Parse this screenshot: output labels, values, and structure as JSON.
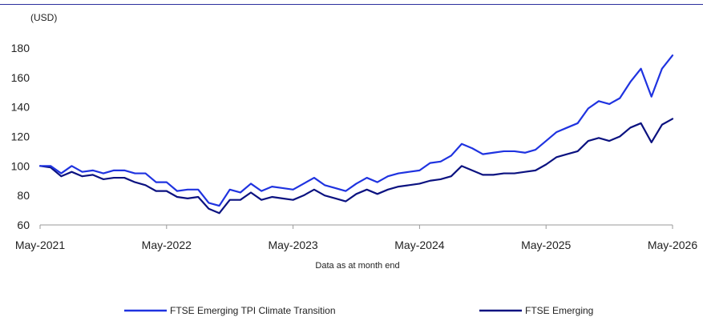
{
  "chart_data": {
    "type": "line",
    "unit_label": "(USD)",
    "note": "Data as at month end",
    "xlabel": "",
    "ylabel": "",
    "ylim": [
      60,
      180
    ],
    "yticks": [
      60,
      80,
      100,
      120,
      140,
      160,
      180
    ],
    "x_tick_labels": [
      "May-2021",
      "May-2022",
      "May-2023",
      "May-2024",
      "May-2025",
      "May-2026"
    ],
    "grid": false,
    "legend_position": "bottom",
    "series": [
      {
        "name": "FTSE Emerging TPI Climate Transition",
        "color": "#1f33e0",
        "values": [
          100,
          100,
          95,
          100,
          96,
          97,
          95,
          97,
          97,
          95,
          95,
          89,
          89,
          83,
          84,
          84,
          75,
          73,
          84,
          82,
          88,
          83,
          86,
          85,
          84,
          88,
          92,
          87,
          85,
          83,
          88,
          92,
          89,
          93,
          95,
          96,
          97,
          102,
          103,
          107,
          115,
          112,
          108,
          109,
          110,
          110,
          109,
          111,
          117,
          123,
          126,
          129,
          139,
          144,
          142,
          146,
          157,
          166,
          147,
          166,
          175
        ]
      },
      {
        "name": "FTSE Emerging",
        "color": "#0b1280",
        "values": [
          100,
          99,
          93,
          96,
          93,
          94,
          91,
          92,
          92,
          89,
          87,
          83,
          83,
          79,
          78,
          79,
          71,
          68,
          77,
          77,
          82,
          77,
          79,
          78,
          77,
          80,
          84,
          80,
          78,
          76,
          81,
          84,
          81,
          84,
          86,
          87,
          88,
          90,
          91,
          93,
          100,
          97,
          94,
          94,
          95,
          95,
          96,
          97,
          101,
          106,
          108,
          110,
          117,
          119,
          117,
          120,
          126,
          129,
          116,
          128,
          132
        ]
      }
    ]
  }
}
